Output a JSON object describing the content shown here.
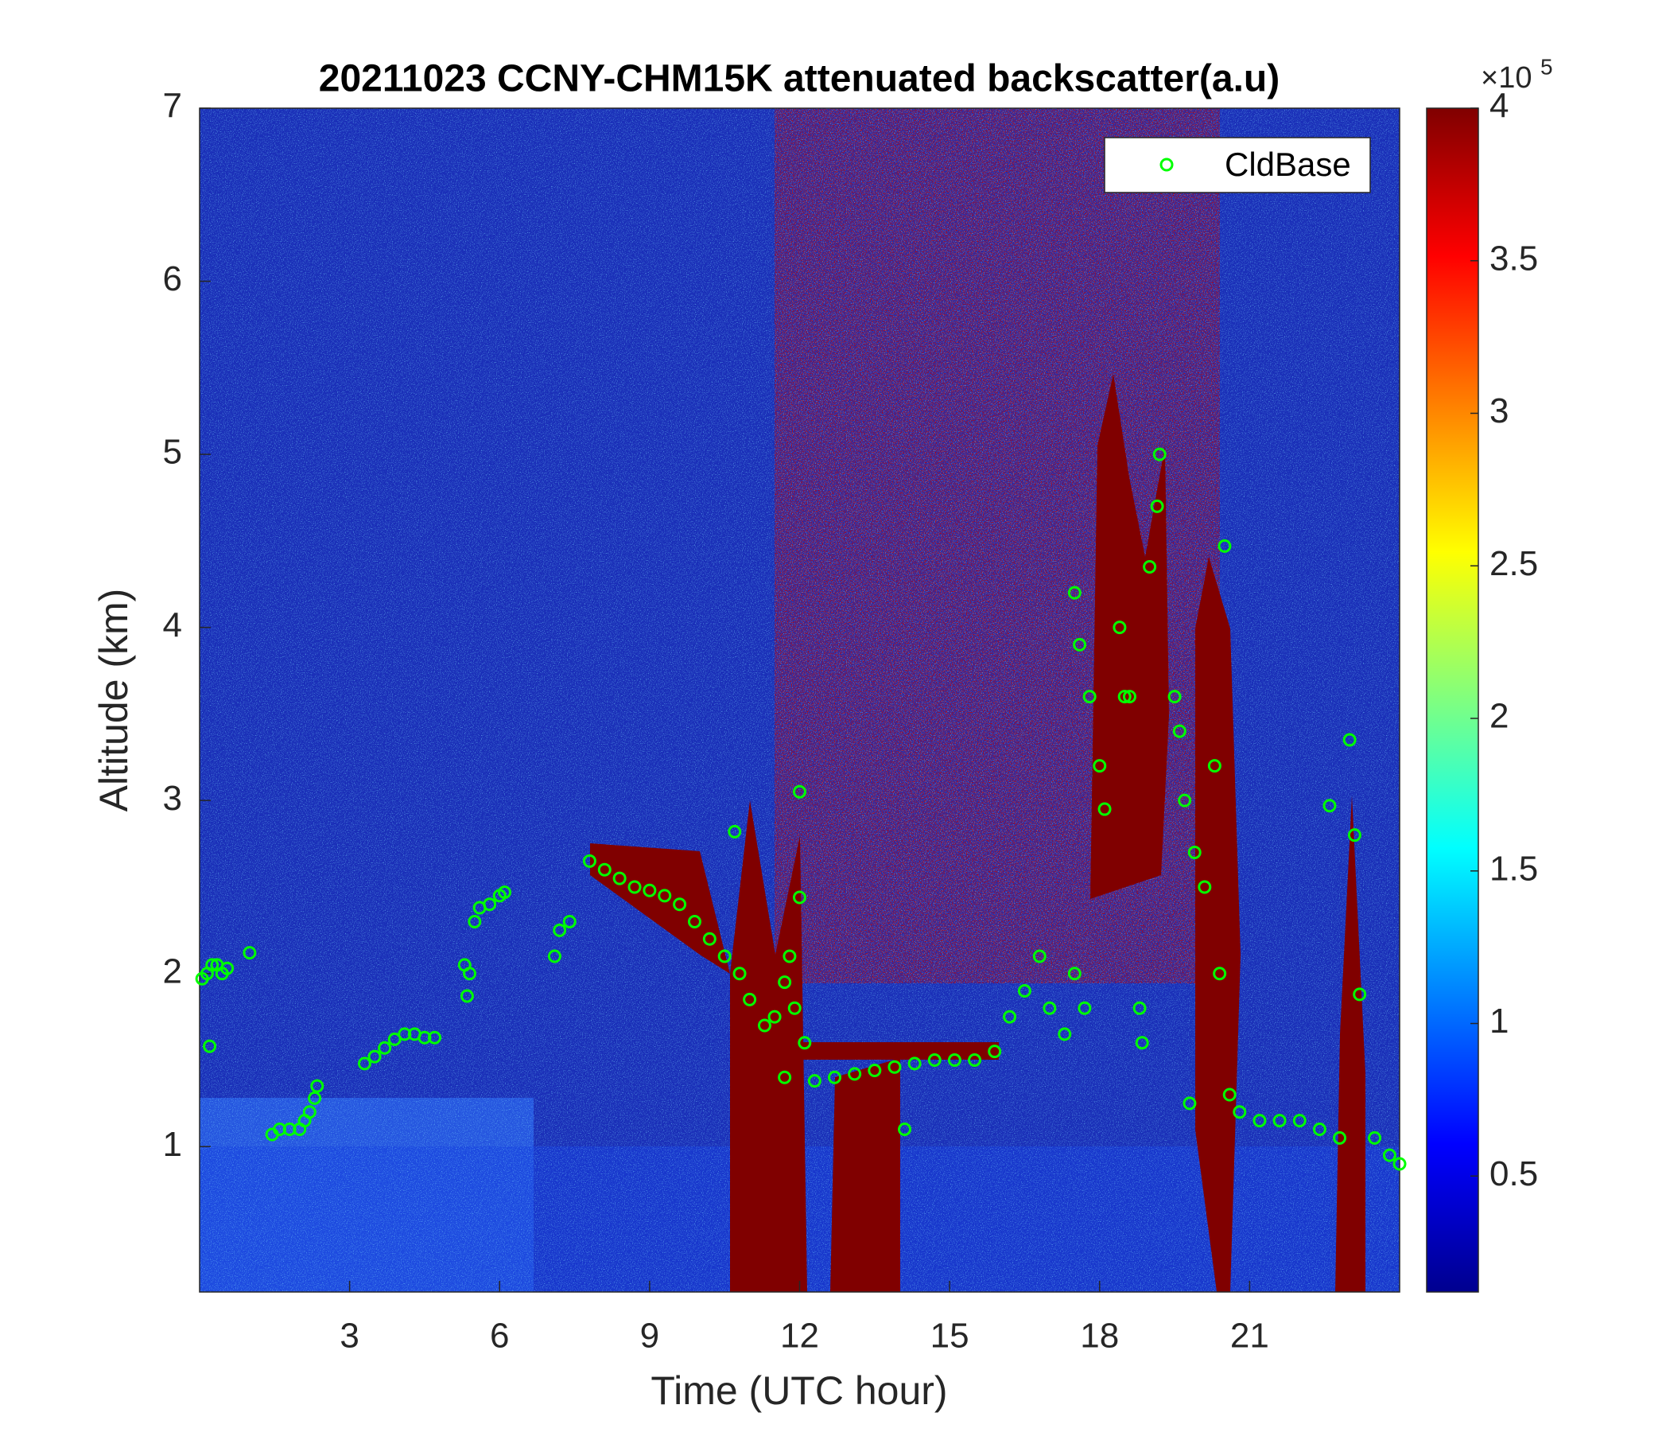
{
  "chart_data": {
    "type": "heatmap",
    "title": "20211023 CCNY-CHM15K attenuated backscatter(a.u)",
    "x_label": "Time (UTC hour)",
    "y_label": "Altitude (km)",
    "xlim": [
      0,
      24
    ],
    "ylim": [
      0.16,
      7
    ],
    "xticks": [
      3,
      6,
      9,
      12,
      15,
      18,
      21
    ],
    "yticks": [
      1,
      2,
      3,
      4,
      5,
      6,
      7
    ],
    "colormap": "jet",
    "clim": [
      0.12,
      4
    ],
    "cticks": [
      0.5,
      1,
      1.5,
      2,
      2.5,
      3,
      3.5,
      4
    ],
    "colorbar_multiplier": {
      "base": "×10",
      "exponent": "5"
    },
    "legend": "upper right",
    "series": [
      {
        "name": "CldBase",
        "color": "#00ff00",
        "x": [
          0.05,
          0.15,
          0.25,
          0.35,
          0.45,
          0.55,
          0.2,
          1.0,
          1.45,
          1.6,
          1.8,
          2.0,
          2.1,
          2.2,
          2.3,
          2.35,
          3.3,
          3.5,
          3.7,
          3.9,
          4.1,
          4.3,
          4.5,
          4.7,
          5.3,
          5.35,
          5.4,
          5.5,
          5.6,
          5.8,
          6.0,
          6.1,
          7.1,
          7.2,
          7.4,
          7.8,
          8.1,
          8.4,
          8.7,
          9.0,
          9.3,
          9.6,
          9.9,
          10.2,
          10.5,
          10.8,
          10.7,
          11.0,
          11.3,
          11.5,
          11.7,
          11.8,
          11.9,
          12.0,
          12.0,
          11.7,
          12.1,
          12.3,
          12.7,
          13.1,
          13.5,
          13.9,
          14.3,
          14.7,
          15.1,
          15.5,
          15.9,
          14.1,
          16.2,
          16.5,
          16.8,
          17.0,
          17.3,
          17.5,
          17.7,
          17.5,
          17.6,
          17.8,
          18.0,
          18.1,
          18.4,
          18.5,
          18.6,
          18.8,
          18.85,
          19.0,
          19.15,
          19.2,
          19.5,
          19.6,
          19.7,
          19.9,
          20.1,
          20.3,
          20.5,
          20.4,
          20.6,
          19.8,
          20.8,
          21.2,
          21.6,
          22.0,
          22.4,
          22.8,
          22.6,
          23.0,
          23.1,
          23.2,
          23.5,
          23.8,
          24.0
        ],
        "y": [
          1.97,
          2.0,
          2.05,
          2.05,
          2.0,
          2.03,
          1.58,
          2.12,
          1.07,
          1.1,
          1.1,
          1.1,
          1.15,
          1.2,
          1.28,
          1.35,
          1.48,
          1.52,
          1.57,
          1.62,
          1.65,
          1.65,
          1.63,
          1.63,
          2.05,
          1.87,
          2.0,
          2.3,
          2.38,
          2.4,
          2.45,
          2.47,
          2.1,
          2.25,
          2.3,
          2.65,
          2.6,
          2.55,
          2.5,
          2.48,
          2.45,
          2.4,
          2.3,
          2.2,
          2.1,
          2.0,
          2.82,
          1.85,
          1.7,
          1.75,
          1.95,
          2.1,
          1.8,
          3.05,
          2.44,
          1.4,
          1.6,
          1.38,
          1.4,
          1.42,
          1.44,
          1.46,
          1.48,
          1.5,
          1.5,
          1.5,
          1.55,
          1.1,
          1.75,
          1.9,
          2.1,
          1.8,
          1.65,
          2.0,
          1.8,
          4.2,
          3.9,
          3.6,
          3.2,
          2.95,
          4.0,
          3.6,
          3.6,
          1.8,
          1.6,
          4.35,
          4.7,
          5.0,
          3.6,
          3.4,
          3.0,
          2.7,
          2.5,
          3.2,
          4.47,
          2.0,
          1.3,
          1.25,
          1.2,
          1.15,
          1.15,
          1.15,
          1.1,
          1.05,
          2.97,
          3.35,
          2.8,
          1.88,
          1.05,
          0.95,
          0.9
        ]
      }
    ]
  }
}
